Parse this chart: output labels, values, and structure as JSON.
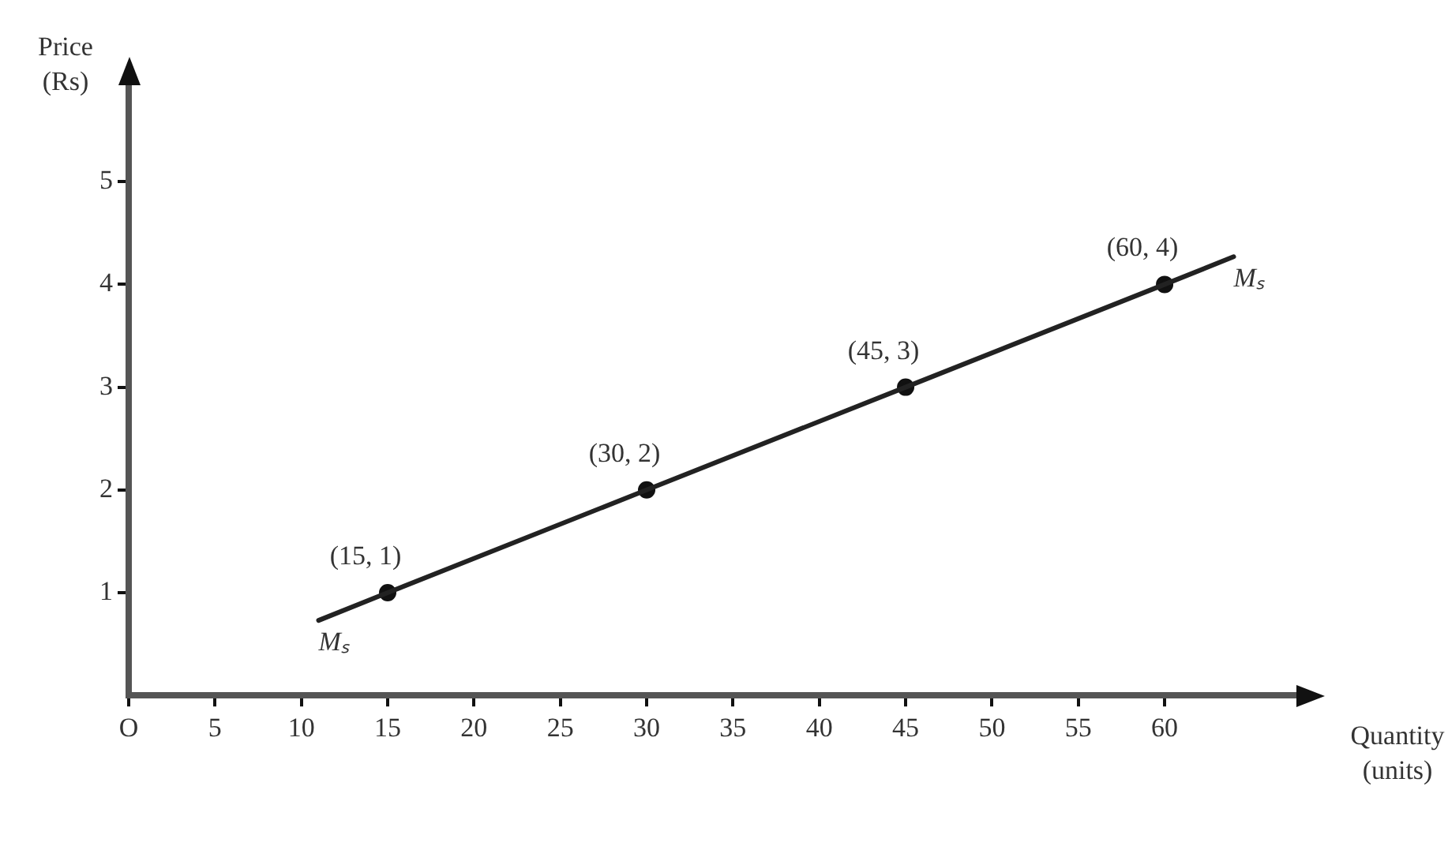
{
  "chart_data": {
    "type": "line",
    "xlabel": "Quantity (units)",
    "ylabel": "Price (Rs)",
    "series": [
      {
        "color": "#222222",
        "marker": "none",
        "x": [
          11,
          15,
          30,
          45,
          60,
          64
        ],
        "values": [
          0.73,
          1,
          2,
          3,
          4,
          4.27
        ]
      },
      {
        "type": "scatter",
        "color": "#111111",
        "marker": "circle",
        "x": [
          15,
          30,
          45,
          60
        ],
        "values": [
          1,
          2,
          3,
          4
        ]
      }
    ],
    "xlim": [
      0,
      68
    ],
    "ylim": [
      0,
      6
    ],
    "xticks": [
      {
        "value": 0,
        "label": "O"
      },
      5,
      10,
      15,
      20,
      25,
      30,
      35,
      40,
      45,
      50,
      55,
      60
    ],
    "yticks": [
      1,
      2,
      3,
      4,
      5
    ],
    "annotations": [
      {
        "text": "(15, 1)",
        "x": 15,
        "y": 1
      },
      {
        "text": "(30, 2)",
        "x": 30,
        "y": 2
      },
      {
        "text": "(45, 3)",
        "x": 45,
        "y": 3
      },
      {
        "text": "(60, 4)",
        "x": 60,
        "y": 4
      },
      {
        "text": "Mₛ",
        "x": 11,
        "y": 0.73
      },
      {
        "text": "Mₛ",
        "x": 64,
        "y": 4.27
      }
    ],
    "grid": false,
    "legend": false
  }
}
